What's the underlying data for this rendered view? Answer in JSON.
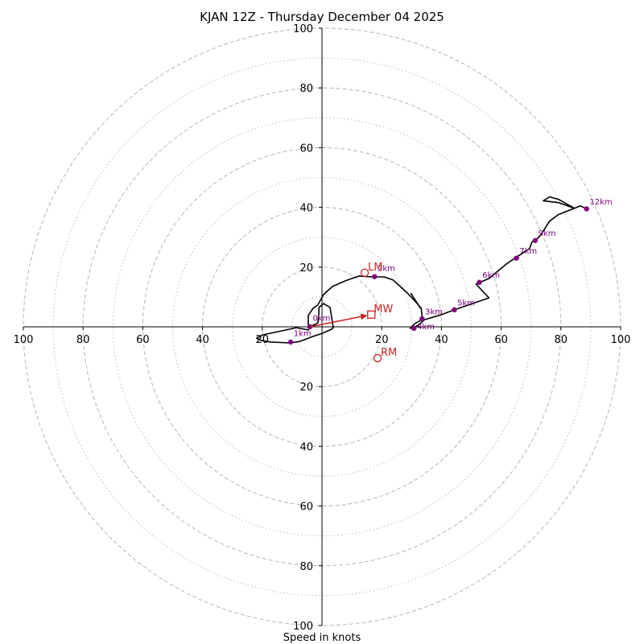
{
  "chart_data": {
    "type": "hodograph",
    "title": "KJAN 12Z - Thursday December 04 2025",
    "xlabel": "Speed in knots",
    "units": "knots",
    "max_speed": 100,
    "rings_major": [
      20,
      40,
      60,
      80,
      100
    ],
    "rings_minor": [
      10,
      30,
      50,
      70,
      90
    ],
    "x_ticks": [
      {
        "value": -100,
        "label": "100"
      },
      {
        "value": -80,
        "label": "80"
      },
      {
        "value": -60,
        "label": "60"
      },
      {
        "value": -40,
        "label": "40"
      },
      {
        "value": -20,
        "label": "20"
      },
      {
        "value": 20,
        "label": "20"
      },
      {
        "value": 40,
        "label": "40"
      },
      {
        "value": 60,
        "label": "60"
      },
      {
        "value": 80,
        "label": "80"
      },
      {
        "value": 100,
        "label": "100"
      }
    ],
    "y_ticks": [
      {
        "value": 100,
        "label": "100"
      },
      {
        "value": 80,
        "label": "80"
      },
      {
        "value": 60,
        "label": "60"
      },
      {
        "value": 40,
        "label": "40"
      },
      {
        "value": 20,
        "label": "20"
      },
      {
        "value": -20,
        "label": "20"
      },
      {
        "value": -40,
        "label": "40"
      },
      {
        "value": -60,
        "label": "60"
      },
      {
        "value": -80,
        "label": "80"
      },
      {
        "value": -100,
        "label": "100"
      }
    ],
    "trace": [
      [
        -4.3,
        -1.1
      ],
      [
        -8.6,
        -0.3
      ],
      [
        -16,
        -1.9
      ],
      [
        -19.8,
        -2.7
      ],
      [
        -21.9,
        -3.8
      ],
      [
        -20.3,
        -4.6
      ],
      [
        -17,
        -5.1
      ],
      [
        -10.5,
        -5.4
      ],
      [
        -7.5,
        -4.9
      ],
      [
        -3,
        -3.2
      ],
      [
        0,
        -2.2
      ],
      [
        3.2,
        -0.8
      ],
      [
        3.8,
        -0.3
      ],
      [
        2.7,
        6.5
      ],
      [
        0.5,
        7.8
      ],
      [
        -1,
        6.5
      ],
      [
        -1.1,
        3.8
      ],
      [
        -1.4,
        1.3
      ],
      [
        -3.5,
        0.3
      ],
      [
        -4.6,
        0.8
      ],
      [
        -4.6,
        3.8
      ],
      [
        -3,
        6.2
      ],
      [
        -1.4,
        7.3
      ],
      [
        0.5,
        10.8
      ],
      [
        3.5,
        13.5
      ],
      [
        7.8,
        15.4
      ],
      [
        12.4,
        17
      ],
      [
        16.8,
        16.7
      ],
      [
        20.8,
        16.7
      ],
      [
        23.8,
        15.7
      ],
      [
        26.2,
        13.5
      ],
      [
        28.6,
        11.3
      ],
      [
        31.6,
        8.1
      ],
      [
        33.2,
        6.2
      ],
      [
        33.5,
        3.8
      ],
      [
        33.5,
        2.4
      ],
      [
        31.1,
        1.1
      ],
      [
        29.5,
        -0.5
      ],
      [
        30.3,
        -0.3
      ],
      [
        32.2,
        0.5
      ],
      [
        34.3,
        2.4
      ],
      [
        39.7,
        4
      ],
      [
        44.3,
        5.7
      ],
      [
        55.9,
        9.7
      ],
      [
        51.6,
        14.3
      ],
      [
        55.9,
        16.2
      ],
      [
        61.8,
        21.1
      ],
      [
        65.4,
        23.5
      ],
      [
        69.5,
        26.2
      ],
      [
        70.3,
        28.4
      ],
      [
        71.8,
        29.2
      ],
      [
        73.3,
        30.8
      ],
      [
        76.2,
        35.4
      ],
      [
        79.2,
        37.6
      ],
      [
        84.5,
        39.7
      ],
      [
        79.2,
        41.6
      ],
      [
        74.1,
        42.2
      ],
      [
        76.2,
        43.5
      ],
      [
        79.2,
        42.7
      ],
      [
        84.5,
        39.7
      ],
      [
        86.5,
        40.5
      ],
      [
        88.6,
        39.5
      ]
    ],
    "barb": {
      "from": [
        29.7,
        11.3
      ],
      "to": [
        33,
        6.2
      ]
    },
    "height_markers": [
      {
        "label": "0km",
        "u": -4.1,
        "v": 0,
        "label_du": 1,
        "label_dv": 2
      },
      {
        "label": "1km",
        "u": -10.5,
        "v": -5.1,
        "label_du": 1,
        "label_dv": 2
      },
      {
        "label": "2km",
        "u": 17.6,
        "v": 16.8,
        "label_du": 1,
        "label_dv": 2
      },
      {
        "label": "3km",
        "u": 33.5,
        "v": 2.7,
        "label_du": 1,
        "label_dv": 1.5
      },
      {
        "label": "4km",
        "u": 30.8,
        "v": -0.5,
        "label_du": 1,
        "label_dv": -0.3
      },
      {
        "label": "5km",
        "u": 44.3,
        "v": 5.7,
        "label_du": 1,
        "label_dv": 1.5
      },
      {
        "label": "6km",
        "u": 52.7,
        "v": 14.9,
        "label_du": 1,
        "label_dv": 1.5
      },
      {
        "label": "7km",
        "u": 65.1,
        "v": 23,
        "label_du": 1,
        "label_dv": 1.5
      },
      {
        "label": "9km",
        "u": 71.4,
        "v": 28.9,
        "label_du": 1,
        "label_dv": 1.5
      },
      {
        "label": "12km",
        "u": 88.6,
        "v": 39.5,
        "label_du": 1,
        "label_dv": 1.5
      }
    ],
    "motions": {
      "mean_wind": {
        "label": "MW",
        "u": 16.5,
        "v": 4.1
      },
      "left_mover": {
        "label": "LM",
        "u": 14.3,
        "v": 18.1
      },
      "right_mover": {
        "label": "RM",
        "u": 18.6,
        "v": -10.5
      }
    },
    "colors": {
      "trace": "#000000",
      "markers": "#800080",
      "motions": "#cc2222",
      "grid": "#bbbbbb",
      "axes": "#000000"
    }
  }
}
